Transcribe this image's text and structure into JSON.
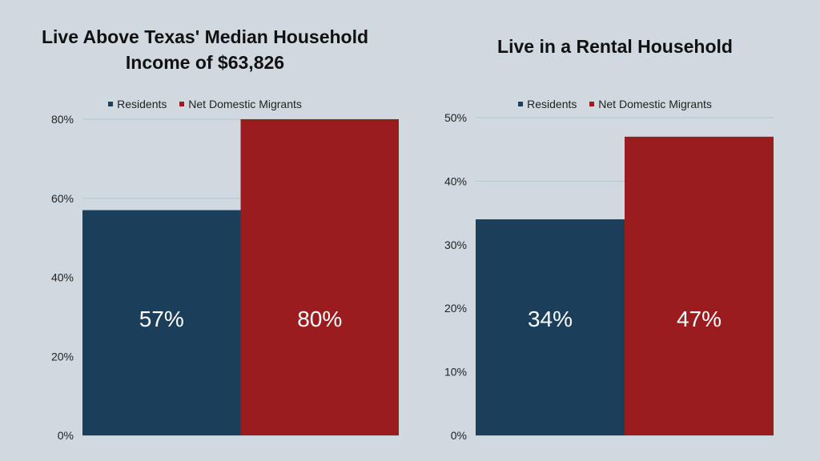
{
  "colors": {
    "residents": "#1b3f5a",
    "migrants": "#9b1c1f",
    "grid": "#b8c3cc"
  },
  "chart_data": [
    {
      "type": "bar",
      "title": "Live Above Texas' Median Household\nIncome of $63,826",
      "categories": [
        "Residents",
        "Net Domestic Migrants"
      ],
      "values": [
        57,
        80
      ],
      "data_labels": [
        "57%",
        "80%"
      ],
      "ylim": [
        0,
        80
      ],
      "yticks": [
        0,
        20,
        40,
        60,
        80
      ],
      "ytick_labels": [
        "0%",
        "20%",
        "40%",
        "60%",
        "80%"
      ],
      "legend": [
        "Residents",
        "Net Domestic Migrants"
      ],
      "legend_position": "top",
      "grid": true
    },
    {
      "type": "bar",
      "title": "Live in a Rental Household",
      "categories": [
        "Residents",
        "Net Domestic Migrants"
      ],
      "values": [
        34,
        47
      ],
      "data_labels": [
        "34%",
        "47%"
      ],
      "ylim": [
        0,
        50
      ],
      "yticks": [
        0,
        10,
        20,
        30,
        40,
        50
      ],
      "ytick_labels": [
        "0%",
        "10%",
        "20%",
        "30%",
        "40%",
        "50%"
      ],
      "legend": [
        "Residents",
        "Net Domestic Migrants"
      ],
      "legend_position": "top",
      "grid": true
    }
  ]
}
